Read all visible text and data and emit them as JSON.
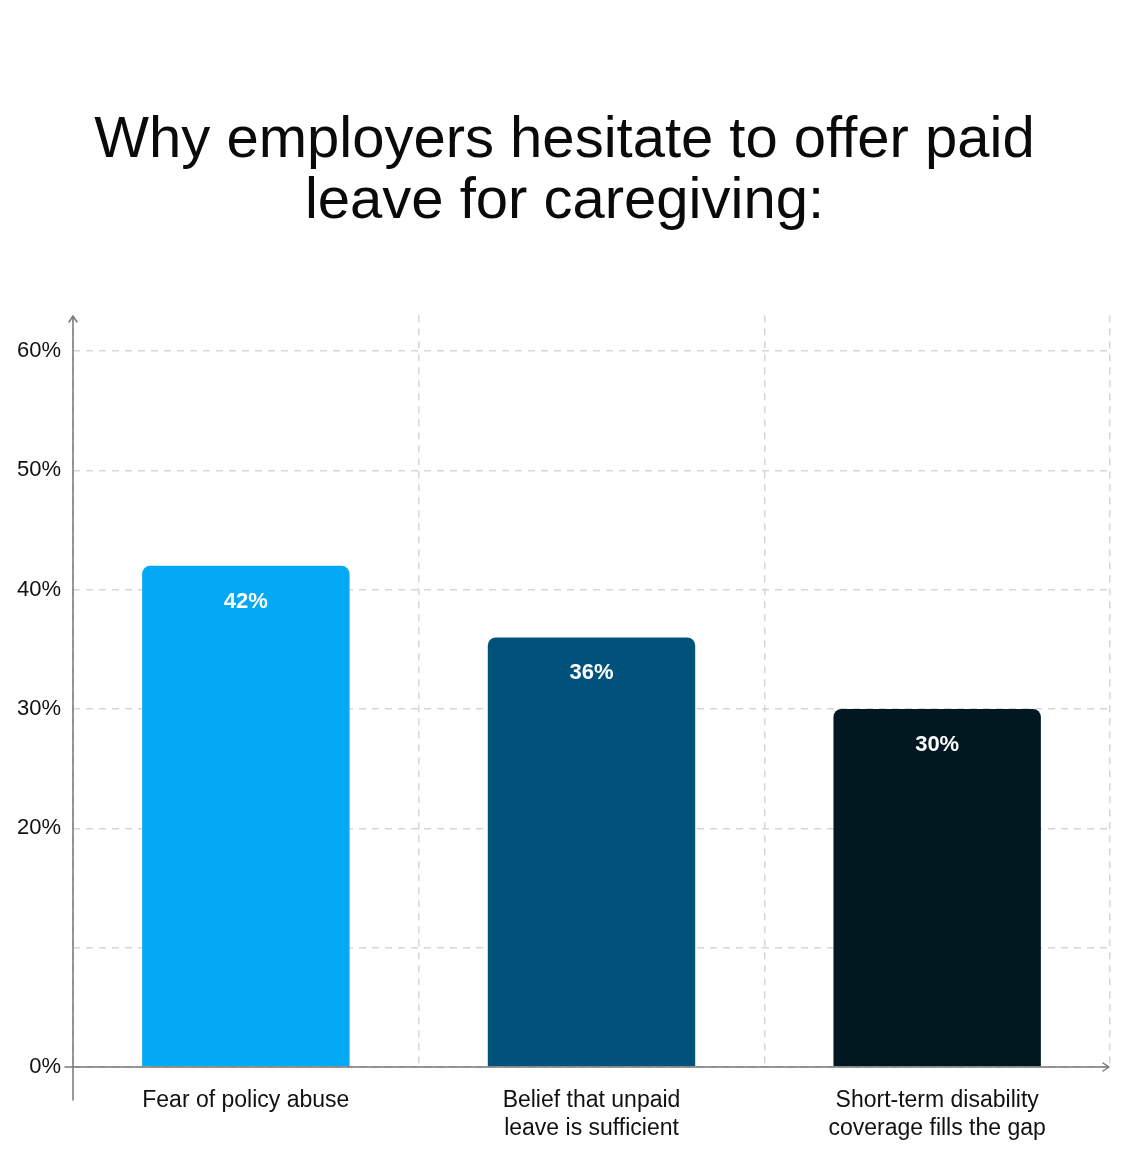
{
  "chart_data": {
    "type": "bar",
    "title": "Why employers hesitate to offer paid leave for caregiving:",
    "categories": [
      "Fear of policy abuse",
      "Belief that unpaid leave is sufficient",
      "Short-term disability coverage fills the gap"
    ],
    "values": [
      42,
      36,
      30
    ],
    "colors": [
      "#03a9f4",
      "#00527a",
      "#011820"
    ],
    "value_labels": [
      "42%",
      "36%",
      "30%"
    ],
    "ylim": [
      0,
      63
    ],
    "yticks": [
      {
        "value": 0,
        "label": "0%"
      },
      {
        "value": 10,
        "label": null
      },
      {
        "value": 20,
        "label": "20%"
      },
      {
        "value": 30,
        "label": "30%"
      },
      {
        "value": 40,
        "label": "40%"
      },
      {
        "value": 50,
        "label": "50%"
      },
      {
        "value": 60,
        "label": "60%"
      }
    ],
    "grid": true
  }
}
